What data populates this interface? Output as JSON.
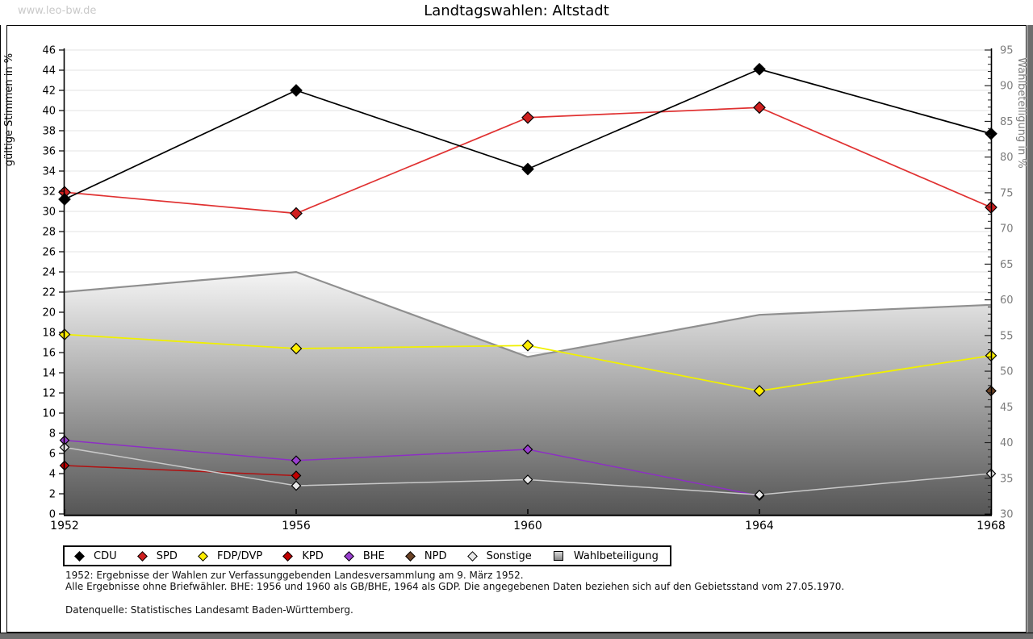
{
  "watermark": "www.leo-bw.de",
  "title": "Landtagswahlen: Altstadt",
  "footnotes": {
    "line1": "1952: Ergebnisse der Wahlen zur Verfassunggebenden Landesversammlung am 9. März 1952.",
    "line2": "Alle Ergebnisse ohne Briefwähler. BHE: 1956 und 1960 als GB/BHE, 1964 als GDP. Die angegebenen Daten beziehen sich auf den Gebietsstand vom 27.05.1970.",
    "source": "Datenquelle: Statistisches Landesamt Baden-Württemberg."
  },
  "chart_data": {
    "type": "line",
    "title": "Landtagswahlen: Altstadt",
    "x": [
      1952,
      1956,
      1960,
      1964,
      1968
    ],
    "left_axis": {
      "label": "gültige Stimmen in %",
      "min": 0,
      "max": 46,
      "tick_step": 2,
      "color": "#000000"
    },
    "right_axis": {
      "label": "Wahlbeteiligung in %",
      "min": 30,
      "max": 95,
      "label_step": 5,
      "minor_step": 1,
      "color": "#7d7d7d"
    },
    "grid": {
      "on": true,
      "color": "#e3e3e3",
      "step": 2
    },
    "legend_position": "bottom",
    "series": [
      {
        "name": "CDU",
        "axis": "left",
        "color": "#000000",
        "marker_color": "#000000",
        "marker": "diamond",
        "marker_size": 7,
        "values": [
          31.2,
          42.0,
          34.2,
          44.1,
          37.7
        ]
      },
      {
        "name": "SPD",
        "axis": "left",
        "color": "#e03131",
        "marker_color": "#cf1f1f",
        "marker": "diamond",
        "marker_size": 7,
        "values": [
          31.9,
          29.8,
          39.3,
          40.3,
          30.4
        ]
      },
      {
        "name": "FDP/DVP",
        "axis": "left",
        "color": "#f0f000",
        "marker_color": "#ffee00",
        "marker": "diamond",
        "marker_size": 6.5,
        "values": [
          17.8,
          16.4,
          16.7,
          12.2,
          15.7
        ]
      },
      {
        "name": "KPD",
        "axis": "left",
        "color": "#b01010",
        "marker_color": "#c00000",
        "marker": "diamond",
        "marker_size": 5.5,
        "values": [
          4.8,
          3.8,
          null,
          null,
          null
        ]
      },
      {
        "name": "BHE",
        "axis": "left",
        "color": "#8d2fc4",
        "marker_color": "#9a3fd0",
        "marker": "diamond",
        "marker_size": 5.5,
        "values": [
          7.3,
          5.3,
          6.4,
          1.8,
          null
        ]
      },
      {
        "name": "NPD",
        "axis": "left",
        "color": "#6b4226",
        "marker_color": "#6b4226",
        "marker": "diamond",
        "marker_size": 6,
        "values": [
          null,
          null,
          null,
          null,
          12.2
        ]
      },
      {
        "name": "Sonstige",
        "axis": "left",
        "color": "#c9c9c9",
        "marker_color": "#e9e9e9",
        "marker": "diamond",
        "marker_size": 5.5,
        "values": [
          6.6,
          2.8,
          3.4,
          1.9,
          4.0
        ]
      }
    ],
    "turnout": {
      "name": "Wahlbeteiligung",
      "axis": "right",
      "type": "area",
      "values": [
        61.1,
        63.9,
        52.0,
        57.9,
        59.3
      ],
      "area_gradient_top": "#f5f5f5",
      "area_gradient_bottom": "#565656",
      "edge_color": "#8f8f8f",
      "legend_color": "#b8b8b8"
    },
    "render_order": [
      3,
      4,
      6,
      5,
      2,
      1,
      0
    ]
  }
}
